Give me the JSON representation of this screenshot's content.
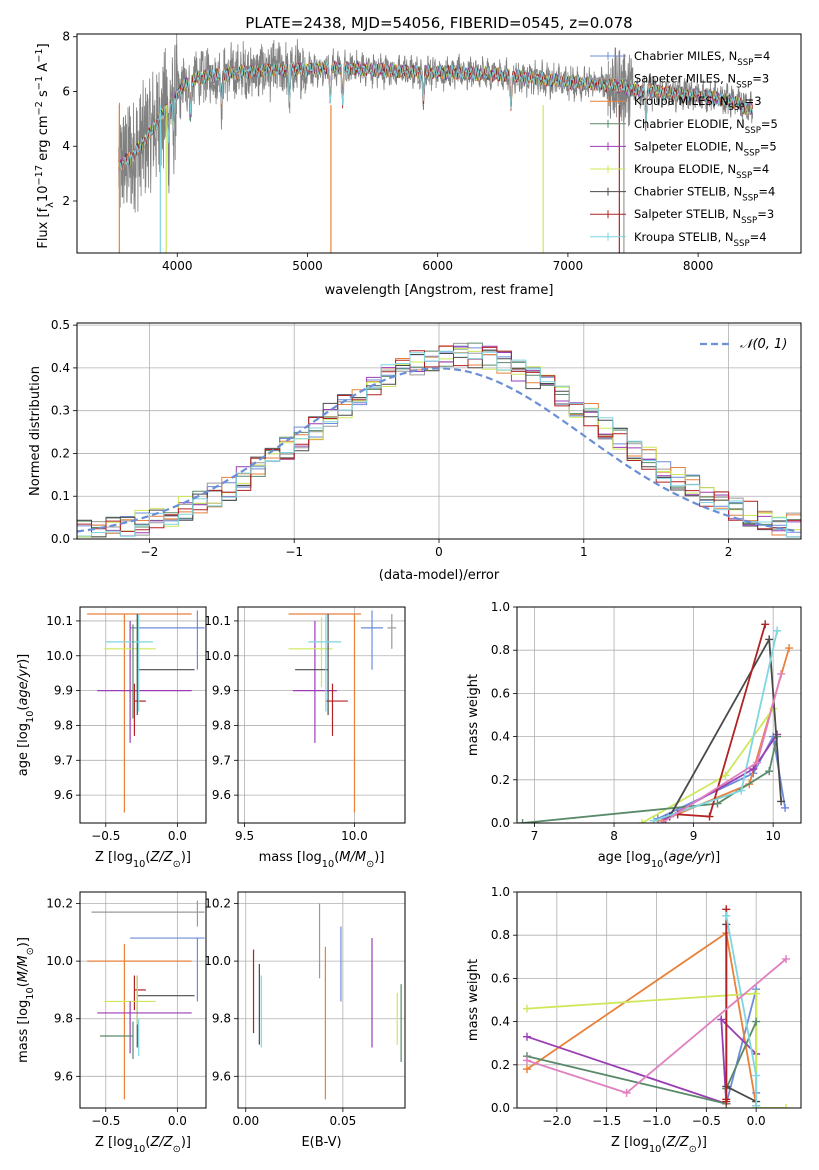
{
  "chart_data": [
    {
      "type": "line",
      "panel": "spectrum",
      "title": "PLATE=2438, MJD=54056, FIBERID=0545, z=0.078",
      "xlabel": "wavelength [Angstrom, rest frame]",
      "ylabel": "Flux [f_λ10^-17 erg cm^-2 s^-1 A^-1]",
      "xlim": [
        3230,
        8790
      ],
      "ylim": [
        0.1,
        8.1
      ],
      "xticks": [
        4000,
        5000,
        6000,
        7000,
        8000
      ],
      "yticks": [
        2,
        4,
        6,
        8
      ],
      "grid": false,
      "legend_position": "right",
      "series": [
        {
          "name": "Chabrier MILES, N_SSP=4",
          "color": "#6d8cd9"
        },
        {
          "name": "Salpeter MILES, N_SSP=3",
          "color": "#9a9a9a"
        },
        {
          "name": "Kroupa MILES, N_SSP=3",
          "color": "#e8813a"
        },
        {
          "name": "Chabrier ELODIE, N_SSP=5",
          "color": "#5a8a6a"
        },
        {
          "name": "Salpeter ELODIE, N_SSP=5",
          "color": "#9a3db5"
        },
        {
          "name": "Kroupa ELODIE, N_SSP=4",
          "color": "#cde85a"
        },
        {
          "name": "Chabrier STELIB, N_SSP=4",
          "color": "#4a4a4a"
        },
        {
          "name": "Salpeter STELIB, N_SSP=3",
          "color": "#b22222"
        },
        {
          "name": "Kroupa STELIB, N_SSP=4",
          "color": "#7fd6e0"
        }
      ],
      "data_color": "#808080",
      "model_continuum": {
        "x": [
          3550,
          3650,
          3750,
          3850,
          3950,
          4050,
          4150,
          4300,
          4500,
          4700,
          4900,
          5100,
          5300,
          5500,
          5700,
          5900,
          6100,
          6300,
          6500,
          6700,
          6900,
          7100,
          7300,
          7400,
          7500,
          7700,
          7900,
          8100,
          8300,
          8400
        ],
        "y": [
          3.3,
          3.6,
          4.2,
          4.9,
          5.6,
          6.2,
          6.5,
          6.6,
          6.7,
          6.8,
          6.8,
          6.85,
          6.85,
          6.8,
          6.75,
          6.7,
          6.7,
          6.65,
          6.6,
          6.5,
          6.4,
          6.3,
          6.25,
          6.2,
          6.05,
          6.0,
          5.9,
          5.8,
          5.6,
          5.3
        ]
      }
    },
    {
      "type": "histogram",
      "panel": "residuals",
      "xlabel": "(data-model)/error",
      "ylabel": "Normed distribution",
      "xlim": [
        -2.5,
        2.5
      ],
      "ylim": [
        0,
        0.505
      ],
      "xticks": [
        -2,
        -1,
        0,
        1,
        2
      ],
      "yticks": [
        0.0,
        0.1,
        0.2,
        0.3,
        0.4,
        0.5
      ],
      "grid": true,
      "legend": [
        {
          "name": "𝒩(0, 1)",
          "style": "dashed",
          "color": "#6a8fd6"
        }
      ],
      "legend_position": "top-right",
      "reference_curve": "normal(0,1)",
      "bin_width": 0.1
    },
    {
      "type": "errorbar",
      "panel": "age-vs-Z",
      "xlabel": "Z [log₁₀(Z/Z⊙)]",
      "ylabel": "age  [log₁₀(age/yr)]",
      "xlim": [
        -0.68,
        0.2
      ],
      "ylim": [
        9.52,
        10.14
      ],
      "xticks": [
        -0.5,
        0.0
      ],
      "yticks": [
        9.6,
        9.7,
        9.8,
        9.9,
        10.0,
        10.1
      ],
      "grid": true,
      "points": [
        {
          "series": "Chabrier MILES",
          "x": 0.14,
          "y": 10.08,
          "xerr": [
            0.47,
            0.05
          ],
          "yerr": [
            0.12,
            0.05
          ]
        },
        {
          "series": "Kroupa MILES",
          "x": -0.37,
          "y": 10.12,
          "xerr": [
            0.26,
            0.47
          ],
          "yerr": [
            0.57,
            0.0
          ]
        },
        {
          "series": "Salpeter ELODIE",
          "x": -0.33,
          "y": 9.9,
          "xerr": [
            0.23,
            0.43
          ],
          "yerr": [
            0.15,
            0.2
          ]
        },
        {
          "series": "Kroupa ELODIE",
          "x": -0.28,
          "y": 10.02,
          "xerr": [
            0.23,
            0.13
          ],
          "yerr": [
            0.11,
            0.09
          ]
        },
        {
          "series": "Chabrier STELIB",
          "x": -0.28,
          "y": 9.96,
          "xerr": [
            0.0,
            0.4
          ],
          "yerr": [
            0.13,
            0.16
          ]
        },
        {
          "series": "Salpeter STELIB",
          "x": -0.3,
          "y": 9.87,
          "xerr": [
            0.0,
            0.08
          ],
          "yerr": [
            0.1,
            0.05
          ]
        },
        {
          "series": "Kroupa STELIB",
          "x": -0.27,
          "y": 10.04,
          "xerr": [
            0.23,
            0.1
          ],
          "yerr": [
            0.2,
            0.08
          ]
        },
        {
          "series": "Chabrier ELODIE",
          "x": -0.31,
          "y": 9.96,
          "xerr": [
            0.0,
            0.0
          ],
          "yerr": [
            0.14,
            0.13
          ]
        }
      ]
    },
    {
      "type": "errorbar",
      "panel": "age-vs-mass",
      "xlabel": "mass [log₁₀(M/M⊙)]",
      "xlim": [
        9.47,
        10.23
      ],
      "ylim": [
        9.52,
        10.14
      ],
      "xticks": [
        9.5,
        10.0
      ],
      "yticks": [
        9.6,
        9.7,
        9.8,
        9.9,
        10.0,
        10.1
      ],
      "grid": true,
      "points": [
        {
          "series": "Chabrier MILES",
          "x": 10.08,
          "y": 10.08,
          "xerr": [
            0.05,
            0.05
          ],
          "yerr": [
            0.12,
            0.05
          ]
        },
        {
          "series": "Kroupa MILES",
          "x": 10.0,
          "y": 10.12,
          "xerr": [
            0.3,
            0.03
          ],
          "yerr": [
            0.57,
            0.0
          ]
        },
        {
          "series": "Salpeter ELODIE",
          "x": 9.82,
          "y": 9.9,
          "xerr": [
            0.1,
            0.1
          ],
          "yerr": [
            0.15,
            0.2
          ]
        },
        {
          "series": "Kroupa ELODIE",
          "x": 9.85,
          "y": 10.02,
          "xerr": [
            0.15,
            0.05
          ],
          "yerr": [
            0.11,
            0.09
          ]
        },
        {
          "series": "Chabrier STELIB",
          "x": 9.88,
          "y": 9.96,
          "xerr": [
            0.15,
            0.0
          ],
          "yerr": [
            0.13,
            0.16
          ]
        },
        {
          "series": "Salpeter STELIB",
          "x": 9.9,
          "y": 9.87,
          "xerr": [
            0.03,
            0.07
          ],
          "yerr": [
            0.1,
            0.05
          ]
        },
        {
          "series": "Kroupa STELIB",
          "x": 9.87,
          "y": 10.04,
          "xerr": [
            0.08,
            0.07
          ],
          "yerr": [
            0.2,
            0.08
          ]
        },
        {
          "series": "Salpeter MILES",
          "x": 10.17,
          "y": 10.08,
          "xerr": [
            0.02,
            0.02
          ],
          "yerr": [
            0.06,
            0.04
          ]
        }
      ]
    },
    {
      "type": "line",
      "panel": "weight-vs-age",
      "xlabel": "age  [log₁₀(age/yr)]",
      "ylabel": "mass weight",
      "xlim": [
        6.78,
        10.35
      ],
      "ylim": [
        0.0,
        1.0
      ],
      "xticks": [
        7,
        8,
        9,
        10
      ],
      "yticks": [
        0.0,
        0.2,
        0.4,
        0.6,
        0.8,
        1.0
      ],
      "grid": true,
      "series": [
        {
          "name": "Chabrier MILES",
          "color": "#6d8cd9",
          "x": [
            8.55,
            9.75,
            10.0,
            10.15
          ],
          "y": [
            0.02,
            0.23,
            0.4,
            0.07
          ]
        },
        {
          "name": "Kroupa MILES",
          "color": "#e8813a",
          "x": [
            8.6,
            9.7,
            10.2
          ],
          "y": [
            0.01,
            0.18,
            0.81
          ]
        },
        {
          "name": "Salpeter ELODIE",
          "color": "#9a3db5",
          "x": [
            8.65,
            9.75,
            10.05
          ],
          "y": [
            0.02,
            0.25,
            0.41
          ]
        },
        {
          "name": "Kroupa ELODIE",
          "color": "#cde85a",
          "x": [
            8.35,
            9.4,
            10.0
          ],
          "y": [
            0.0,
            0.22,
            0.53
          ]
        },
        {
          "name": "Chabrier ELODIE",
          "color": "#5a8a6a",
          "x": [
            6.85,
            9.3,
            9.95,
            10.05
          ],
          "y": [
            0.0,
            0.09,
            0.24,
            0.4
          ]
        },
        {
          "name": "Chabrier STELIB",
          "color": "#4a4a4a",
          "x": [
            8.7,
            9.95,
            10.1
          ],
          "y": [
            0.03,
            0.85,
            0.1
          ]
        },
        {
          "name": "Salpeter STELIB",
          "color": "#b22222",
          "x": [
            8.8,
            9.2,
            9.9
          ],
          "y": [
            0.04,
            0.03,
            0.92
          ]
        },
        {
          "name": "Kroupa STELIB",
          "color": "#7fd6e0",
          "x": [
            8.5,
            9.6,
            10.05
          ],
          "y": [
            0.01,
            0.15,
            0.89
          ]
        },
        {
          "name": "Salpeter MILES",
          "color": "#e080c0",
          "x": [
            8.6,
            9.8,
            10.1
          ],
          "y": [
            0.0,
            0.28,
            0.69
          ]
        }
      ]
    },
    {
      "type": "errorbar",
      "panel": "mass-vs-Z",
      "xlabel": "Z [log₁₀(Z/Z⊙)]",
      "ylabel": "mass [log₁₀(M/M⊙)]",
      "xlim": [
        -0.68,
        0.2
      ],
      "ylim": [
        9.49,
        10.24
      ],
      "xticks": [
        -0.5,
        0.0
      ],
      "yticks": [
        9.6,
        9.8,
        10.0,
        10.2
      ],
      "grid": true,
      "points": [
        {
          "series": "Salpeter MILES",
          "x": 0.14,
          "y": 10.17,
          "xerr": [
            0.74,
            0.05
          ],
          "yerr": [
            0.05,
            0.04
          ]
        },
        {
          "series": "Chabrier MILES",
          "x": 0.14,
          "y": 10.08,
          "xerr": [
            0.47,
            0.05
          ],
          "yerr": [
            0.22,
            0.0
          ]
        },
        {
          "series": "Kroupa MILES",
          "x": -0.37,
          "y": 10.0,
          "xerr": [
            0.26,
            0.47
          ],
          "yerr": [
            0.48,
            0.06
          ]
        },
        {
          "series": "Chabrier STELIB",
          "x": -0.28,
          "y": 9.88,
          "xerr": [
            0.0,
            0.4
          ],
          "yerr": [
            0.18,
            0.07
          ]
        },
        {
          "series": "Salpeter STELIB",
          "x": -0.3,
          "y": 9.9,
          "xerr": [
            0.0,
            0.08
          ],
          "yerr": [
            0.07,
            0.05
          ]
        },
        {
          "series": "Kroupa ELODIE",
          "x": -0.28,
          "y": 9.86,
          "xerr": [
            0.23,
            0.13
          ],
          "yerr": [
            0.08,
            0.09
          ]
        },
        {
          "series": "Salpeter ELODIE",
          "x": -0.33,
          "y": 9.82,
          "xerr": [
            0.23,
            0.43
          ],
          "yerr": [
            0.14,
            0.04
          ]
        },
        {
          "series": "Chabrier ELODIE",
          "x": -0.31,
          "y": 9.74,
          "xerr": [
            0.23,
            0.0
          ],
          "yerr": [
            0.08,
            0.05
          ]
        },
        {
          "series": "Kroupa STELIB",
          "x": -0.27,
          "y": 9.8,
          "xerr": [
            0.0,
            0.0
          ],
          "yerr": [
            0.13,
            0.0
          ]
        }
      ]
    },
    {
      "type": "errorbar",
      "panel": "mass-vs-EBV",
      "xlabel": "E(B-V)",
      "xlim": [
        -0.004,
        0.082
      ],
      "ylim": [
        9.49,
        10.24
      ],
      "xticks": [
        0.0,
        0.05
      ],
      "xticklabels": [
        "0.00",
        "0.05"
      ],
      "yticks": [
        9.6,
        9.8,
        10.0,
        10.2
      ],
      "grid": true,
      "points": [
        {
          "series": "Salpeter STELIB",
          "x": 0.004,
          "y": 9.9,
          "yerr": [
            0.15,
            0.14
          ]
        },
        {
          "series": "Chabrier STELIB",
          "x": 0.007,
          "y": 9.85,
          "yerr": [
            0.14,
            0.14
          ]
        },
        {
          "series": "Kroupa STELIB",
          "x": 0.008,
          "y": 9.8,
          "yerr": [
            0.1,
            0.15
          ]
        },
        {
          "series": "Salpeter MILES",
          "x": 0.038,
          "y": 10.07,
          "yerr": [
            0.13,
            0.13
          ]
        },
        {
          "series": "Kroupa MILES",
          "x": 0.041,
          "y": 9.8,
          "yerr": [
            0.28,
            0.25
          ]
        },
        {
          "series": "Chabrier MILES",
          "x": 0.049,
          "y": 9.99,
          "yerr": [
            0.13,
            0.13
          ]
        },
        {
          "series": "Salpeter ELODIE",
          "x": 0.065,
          "y": 9.89,
          "yerr": [
            0.19,
            0.19
          ]
        },
        {
          "series": "Kroupa ELODIE",
          "x": 0.078,
          "y": 9.8,
          "yerr": [
            0.09,
            0.09
          ]
        },
        {
          "series": "Chabrier ELODIE",
          "x": 0.08,
          "y": 9.79,
          "yerr": [
            0.14,
            0.13
          ]
        }
      ]
    },
    {
      "type": "line",
      "panel": "weight-vs-Z",
      "xlabel": "Z [log₁₀(Z/Z⊙)]",
      "ylabel": "mass weight",
      "xlim": [
        -2.4,
        0.45
      ],
      "ylim": [
        0.0,
        1.0
      ],
      "xticks": [
        -2.0,
        -1.5,
        -1.0,
        -0.5,
        0.0
      ],
      "yticks": [
        0.0,
        0.2,
        0.4,
        0.6,
        0.8,
        1.0
      ],
      "grid": true,
      "series": [
        {
          "name": "Chabrier MILES",
          "color": "#6d8cd9",
          "x": [
            -0.3,
            0.0,
            0.0
          ],
          "y": [
            0.02,
            0.55,
            0.07
          ]
        },
        {
          "name": "Kroupa MILES",
          "color": "#e8813a",
          "x": [
            -2.3,
            -0.3,
            0.0
          ],
          "y": [
            0.18,
            0.81,
            0.01
          ]
        },
        {
          "name": "Salpeter ELODIE",
          "color": "#9a3db5",
          "x": [
            -2.3,
            -0.3,
            -0.35,
            0.0
          ],
          "y": [
            0.33,
            0.02,
            0.41,
            0.25
          ]
        },
        {
          "name": "Kroupa ELODIE",
          "color": "#cde85a",
          "x": [
            -2.3,
            0.0,
            0.0,
            0.3
          ],
          "y": [
            0.46,
            0.53,
            0.0,
            0.0
          ]
        },
        {
          "name": "Chabrier ELODIE",
          "color": "#5a8a6a",
          "x": [
            -2.3,
            -0.3,
            -0.3,
            0.0
          ],
          "y": [
            0.24,
            0.02,
            0.09,
            0.4
          ]
        },
        {
          "name": "Chabrier STELIB",
          "color": "#4a4a4a",
          "x": [
            -0.3,
            -0.3,
            0.0
          ],
          "y": [
            0.85,
            0.1,
            0.03
          ]
        },
        {
          "name": "Salpeter STELIB",
          "color": "#b22222",
          "x": [
            -0.3,
            -0.3,
            -0.3
          ],
          "y": [
            0.92,
            0.04,
            0.03
          ]
        },
        {
          "name": "Kroupa STELIB",
          "color": "#7fd6e0",
          "x": [
            -0.3,
            0.0,
            0.0
          ],
          "y": [
            0.89,
            0.15,
            0.01
          ]
        },
        {
          "name": "Salpeter MILES",
          "color": "#e080c0",
          "x": [
            -2.3,
            -1.3,
            0.3
          ],
          "y": [
            0.22,
            0.07,
            0.69
          ]
        }
      ]
    }
  ]
}
